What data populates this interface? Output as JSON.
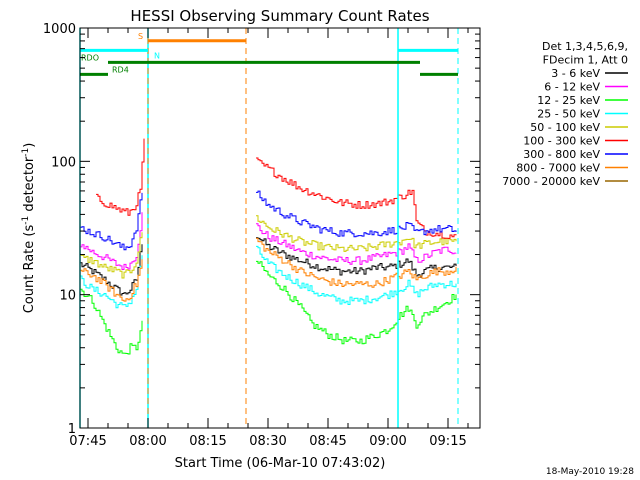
{
  "chart_data": {
    "type": "line",
    "title": "HESSI Observing Summary Count Rates",
    "xlabel": "Start Time (06-Mar-10 07:43:02)",
    "ylabel_main": "Count Rate (s",
    "ylabel_sup": "-1",
    "ylabel_mid": " detector",
    "ylabel_end": ")",
    "y_scale": "log",
    "ylim": [
      1,
      1000
    ],
    "xlim_minutes": [
      0,
      100
    ],
    "x_ticks": [
      {
        "t": 2,
        "label": "07:45"
      },
      {
        "t": 17,
        "label": "08:00"
      },
      {
        "t": 32,
        "label": "08:15"
      },
      {
        "t": 47,
        "label": "08:30"
      },
      {
        "t": 62,
        "label": "08:45"
      },
      {
        "t": 77,
        "label": "09:00"
      },
      {
        "t": 92,
        "label": "09:15"
      }
    ],
    "y_ticks": [
      {
        "v": 1,
        "label": "1"
      },
      {
        "v": 10,
        "label": "10"
      },
      {
        "v": 100,
        "label": "100"
      },
      {
        "v": 1000,
        "label": "1000"
      }
    ],
    "legend": {
      "header": [
        "Det 1,3,4,5,6,9,",
        "FDecim 1, Att 0"
      ],
      "position": "right"
    },
    "series": [
      {
        "name": "3 - 6 keV",
        "color": "#000000",
        "pre": [
          [
            0,
            17
          ],
          [
            3,
            15
          ],
          [
            6,
            13
          ],
          [
            9,
            11
          ],
          [
            11,
            10
          ],
          [
            12.5,
            11
          ],
          [
            14,
            13
          ],
          [
            15.5,
            25
          ]
        ],
        "post": [
          [
            44,
            28
          ],
          [
            47,
            23
          ],
          [
            51,
            20
          ],
          [
            55,
            18
          ],
          [
            60,
            16
          ],
          [
            65,
            15
          ],
          [
            70,
            15
          ],
          [
            74,
            16
          ],
          [
            77,
            16
          ],
          [
            80,
            17
          ],
          [
            82,
            18
          ],
          [
            84,
            14
          ],
          [
            86,
            15
          ],
          [
            89,
            16
          ],
          [
            92,
            16
          ],
          [
            94,
            16
          ]
        ]
      },
      {
        "name": "6 - 12 keV",
        "color": "#ff00ff",
        "pre": [
          [
            0,
            24
          ],
          [
            3,
            21
          ],
          [
            6,
            19
          ],
          [
            9,
            17
          ],
          [
            11,
            16
          ],
          [
            12.5,
            17
          ],
          [
            14,
            20
          ],
          [
            15.5,
            40
          ]
        ],
        "post": [
          [
            44,
            33
          ],
          [
            47,
            27
          ],
          [
            51,
            24
          ],
          [
            55,
            21
          ],
          [
            60,
            19
          ],
          [
            65,
            18
          ],
          [
            70,
            18
          ],
          [
            74,
            19
          ],
          [
            77,
            20
          ],
          [
            80,
            21
          ],
          [
            82,
            23
          ],
          [
            84,
            18
          ],
          [
            86,
            19
          ],
          [
            89,
            21
          ],
          [
            92,
            22
          ],
          [
            94,
            21
          ]
        ]
      },
      {
        "name": "12 - 25 keV",
        "color": "#00ff00",
        "pre": [
          [
            0,
            11
          ],
          [
            3,
            9
          ],
          [
            6,
            6
          ],
          [
            9,
            4
          ],
          [
            11,
            3.5
          ],
          [
            12.5,
            4
          ],
          [
            14,
            4
          ],
          [
            15.5,
            6
          ]
        ],
        "post": [
          [
            44,
            18
          ],
          [
            47,
            14
          ],
          [
            51,
            11
          ],
          [
            55,
            8
          ],
          [
            58,
            6
          ],
          [
            62,
            5
          ],
          [
            66,
            4.5
          ],
          [
            70,
            4.5
          ],
          [
            74,
            5
          ],
          [
            77,
            5.5
          ],
          [
            80,
            7
          ],
          [
            82,
            8
          ],
          [
            84,
            6
          ],
          [
            86,
            7
          ],
          [
            89,
            8
          ],
          [
            92,
            9
          ],
          [
            94,
            10
          ]
        ]
      },
      {
        "name": "25 - 50 keV",
        "color": "#00ffff",
        "pre": [
          [
            0,
            13
          ],
          [
            3,
            11
          ],
          [
            6,
            10
          ],
          [
            9,
            8.5
          ],
          [
            11,
            8
          ],
          [
            12.5,
            9
          ],
          [
            14,
            11
          ],
          [
            15.5,
            20
          ]
        ],
        "post": [
          [
            44,
            22
          ],
          [
            47,
            17
          ],
          [
            51,
            14
          ],
          [
            55,
            12
          ],
          [
            60,
            10
          ],
          [
            65,
            9
          ],
          [
            70,
            9
          ],
          [
            74,
            9.5
          ],
          [
            77,
            10
          ],
          [
            80,
            11
          ],
          [
            82,
            12
          ],
          [
            84,
            10
          ],
          [
            86,
            11
          ],
          [
            89,
            12
          ],
          [
            92,
            12
          ],
          [
            94,
            12
          ]
        ]
      },
      {
        "name": "50 - 100 keV",
        "color": "#cccc00",
        "pre": [
          [
            0,
            19
          ],
          [
            3,
            18
          ],
          [
            6,
            16
          ],
          [
            9,
            15
          ],
          [
            11,
            14
          ],
          [
            12.5,
            15
          ],
          [
            14,
            18
          ],
          [
            15.5,
            30
          ]
        ],
        "post": [
          [
            44,
            38
          ],
          [
            47,
            32
          ],
          [
            51,
            28
          ],
          [
            55,
            25
          ],
          [
            60,
            23
          ],
          [
            65,
            22
          ],
          [
            70,
            22
          ],
          [
            74,
            23
          ],
          [
            77,
            24
          ],
          [
            80,
            25
          ],
          [
            82,
            27
          ],
          [
            84,
            23
          ],
          [
            86,
            24
          ],
          [
            89,
            25
          ],
          [
            92,
            25
          ],
          [
            94,
            25
          ]
        ]
      },
      {
        "name": "100 - 300 keV",
        "color": "#ff0000",
        "pre": [
          [
            4,
            53
          ],
          [
            6,
            49
          ],
          [
            8,
            46
          ],
          [
            10,
            43
          ],
          [
            12,
            41
          ],
          [
            13.5,
            45
          ],
          [
            15,
            60
          ],
          [
            16,
            150
          ]
        ],
        "post": [
          [
            44,
            100
          ],
          [
            47,
            88
          ],
          [
            51,
            74
          ],
          [
            55,
            63
          ],
          [
            60,
            55
          ],
          [
            65,
            49
          ],
          [
            70,
            47
          ],
          [
            74,
            48
          ],
          [
            77,
            50
          ],
          [
            80,
            54
          ],
          [
            83,
            60
          ],
          [
            84,
            35
          ],
          [
            86,
            30
          ],
          [
            89,
            29
          ],
          [
            92,
            28
          ],
          [
            94,
            27
          ]
        ]
      },
      {
        "name": "300 - 800 keV",
        "color": "#0000ff",
        "pre": [
          [
            0,
            32
          ],
          [
            3,
            29
          ],
          [
            6,
            27
          ],
          [
            9,
            24
          ],
          [
            11,
            22
          ],
          [
            12.5,
            24
          ],
          [
            14,
            32
          ],
          [
            15.5,
            60
          ]
        ],
        "post": [
          [
            44,
            58
          ],
          [
            47,
            47
          ],
          [
            51,
            40
          ],
          [
            55,
            35
          ],
          [
            60,
            31
          ],
          [
            65,
            29
          ],
          [
            70,
            29
          ],
          [
            74,
            29
          ],
          [
            77,
            30
          ],
          [
            80,
            31
          ],
          [
            82,
            33
          ],
          [
            84,
            29
          ],
          [
            86,
            30
          ],
          [
            89,
            31
          ],
          [
            92,
            31
          ],
          [
            94,
            30
          ]
        ]
      },
      {
        "name": "800 - 7000 keV",
        "color": "#ff8000",
        "pre": [
          [
            0,
            15
          ],
          [
            3,
            14
          ],
          [
            6,
            12
          ],
          [
            9,
            10
          ],
          [
            11,
            9
          ],
          [
            12.5,
            10
          ],
          [
            14,
            12
          ],
          [
            15.5,
            18
          ]
        ],
        "post": [
          [
            44,
            26
          ],
          [
            47,
            21
          ],
          [
            51,
            18
          ],
          [
            55,
            15
          ],
          [
            60,
            13
          ],
          [
            65,
            12
          ],
          [
            70,
            12
          ],
          [
            74,
            12
          ],
          [
            77,
            13
          ],
          [
            80,
            14
          ],
          [
            82,
            15
          ],
          [
            84,
            13
          ],
          [
            86,
            14
          ],
          [
            89,
            15
          ],
          [
            92,
            15
          ],
          [
            94,
            16
          ]
        ]
      },
      {
        "name": "7000 - 20000 keV",
        "color": "#996600",
        "pre": [],
        "post": []
      }
    ],
    "markers": {
      "solid_cyan": [
        0,
        17,
        79.5
      ],
      "dashed_cyan": [
        94.5
      ],
      "dashed_orange": [
        17,
        41.5
      ]
    },
    "flag_bars": [
      {
        "label": "S",
        "color": "#ff8000",
        "y": 0.9,
        "start": 17,
        "end": 41.5
      },
      {
        "label": "N",
        "color": "#00ffff",
        "y": 1.7,
        "start": 0,
        "end": 17
      },
      {
        "label": "",
        "color": "#00ffff",
        "y": 1.7,
        "start": 79.5,
        "end": 94.5
      },
      {
        "label": "RDO",
        "color": "#008000",
        "y": 2.7,
        "start": 7,
        "end": 85
      },
      {
        "label": "RD4",
        "color": "#008000",
        "y": 3.7,
        "start": 0,
        "end": 7
      },
      {
        "label": "",
        "color": "#008000",
        "y": 3.7,
        "start": 85,
        "end": 94.5
      }
    ]
  },
  "footer": {
    "date_stamp": "18-May-2010 19:28"
  }
}
